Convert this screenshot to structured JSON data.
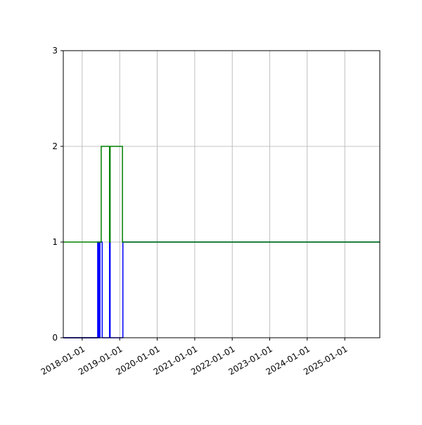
{
  "chart_data": {
    "type": "line",
    "title": "",
    "xlabel": "",
    "ylabel": "",
    "xlim": [
      "2017-07-01",
      "2025-12-08"
    ],
    "ylim": [
      0,
      3
    ],
    "grid": true,
    "x_ticks": [
      "2018-01-01",
      "2019-01-01",
      "2020-01-01",
      "2021-01-01",
      "2022-01-01",
      "2023-01-01",
      "2024-01-01",
      "2025-01-01"
    ],
    "y_ticks": [
      "0",
      "1",
      "2",
      "3"
    ],
    "series": [
      {
        "color": "#000000",
        "points": [
          [
            "2017-07-01",
            0
          ],
          [
            "2018-06-01",
            0
          ]
        ]
      },
      {
        "color": "#0000ff",
        "points": [
          [
            "2017-07-01",
            0
          ],
          [
            "2018-06-01",
            0
          ],
          [
            "2018-06-01",
            1
          ],
          [
            "2018-06-08",
            1
          ],
          [
            "2018-06-08",
            0
          ],
          [
            "2018-06-12",
            0
          ],
          [
            "2018-06-12",
            1
          ],
          [
            "2018-06-20",
            1
          ],
          [
            "2018-06-20",
            0
          ],
          [
            "2018-06-23",
            0
          ],
          [
            "2018-06-23",
            1
          ],
          [
            "2018-07-15",
            1
          ],
          [
            "2018-07-15",
            0
          ],
          [
            "2018-09-24",
            0
          ],
          [
            "2018-09-24",
            1
          ],
          [
            "2018-09-30",
            1
          ],
          [
            "2018-09-30",
            0
          ],
          [
            "2019-02-01",
            0
          ],
          [
            "2019-02-01",
            1
          ],
          [
            "2025-12-08",
            1
          ]
        ]
      },
      {
        "color": "#008000",
        "points": [
          [
            "2017-07-01",
            1
          ],
          [
            "2018-07-05",
            1
          ],
          [
            "2018-07-05",
            2
          ],
          [
            "2018-09-24",
            2
          ],
          [
            "2018-09-24",
            1
          ],
          [
            "2018-09-30",
            1
          ],
          [
            "2018-09-30",
            2
          ],
          [
            "2019-01-28",
            2
          ],
          [
            "2019-01-28",
            1
          ],
          [
            "2025-12-08",
            1
          ]
        ]
      }
    ]
  }
}
